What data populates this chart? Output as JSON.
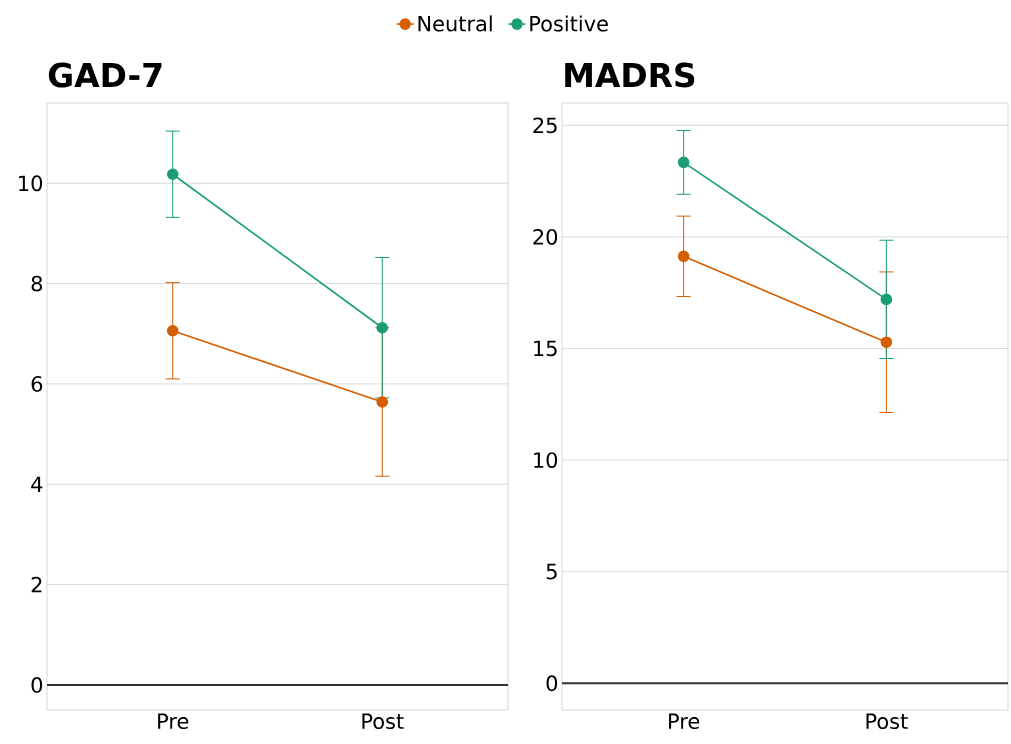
{
  "chart_data": [
    {
      "type": "line",
      "title": "GAD-7",
      "categories": [
        "Pre",
        "Post"
      ],
      "series": [
        {
          "name": "Neutral",
          "color": "#d55e00",
          "values": [
            7.06,
            5.64
          ],
          "errors": [
            0.96,
            1.48
          ]
        },
        {
          "name": "Positive",
          "color": "#1b9e77",
          "values": [
            10.18,
            7.12
          ],
          "errors": [
            0.86,
            1.4
          ]
        }
      ],
      "ylim": [
        -0.5,
        11.6
      ],
      "yticks": [
        0,
        2,
        4,
        6,
        8,
        10
      ],
      "grid": "y",
      "legend": "top",
      "marker": "circle",
      "line_style": "solid",
      "ref_lines": [
        {
          "axis": "y",
          "value": 0,
          "color": "#333333"
        }
      ]
    },
    {
      "type": "line",
      "title": "MADRS",
      "categories": [
        "Pre",
        "Post"
      ],
      "series": [
        {
          "color": "#d55e00",
          "values": [
            19.13,
            15.28
          ],
          "errors": [
            1.8,
            3.15
          ]
        },
        {
          "color": "#1b9e77",
          "values": [
            23.34,
            17.2
          ],
          "errors": [
            1.43,
            2.65
          ]
        }
      ],
      "ylim": [
        -1.2,
        26
      ],
      "yticks": [
        0,
        5,
        10,
        15,
        20,
        25
      ],
      "grid": "y",
      "legend": false,
      "marker": "circle",
      "line_style": "solid",
      "ref_lines": [
        {
          "axis": "y",
          "value": 0,
          "color": "#333333"
        }
      ]
    }
  ]
}
